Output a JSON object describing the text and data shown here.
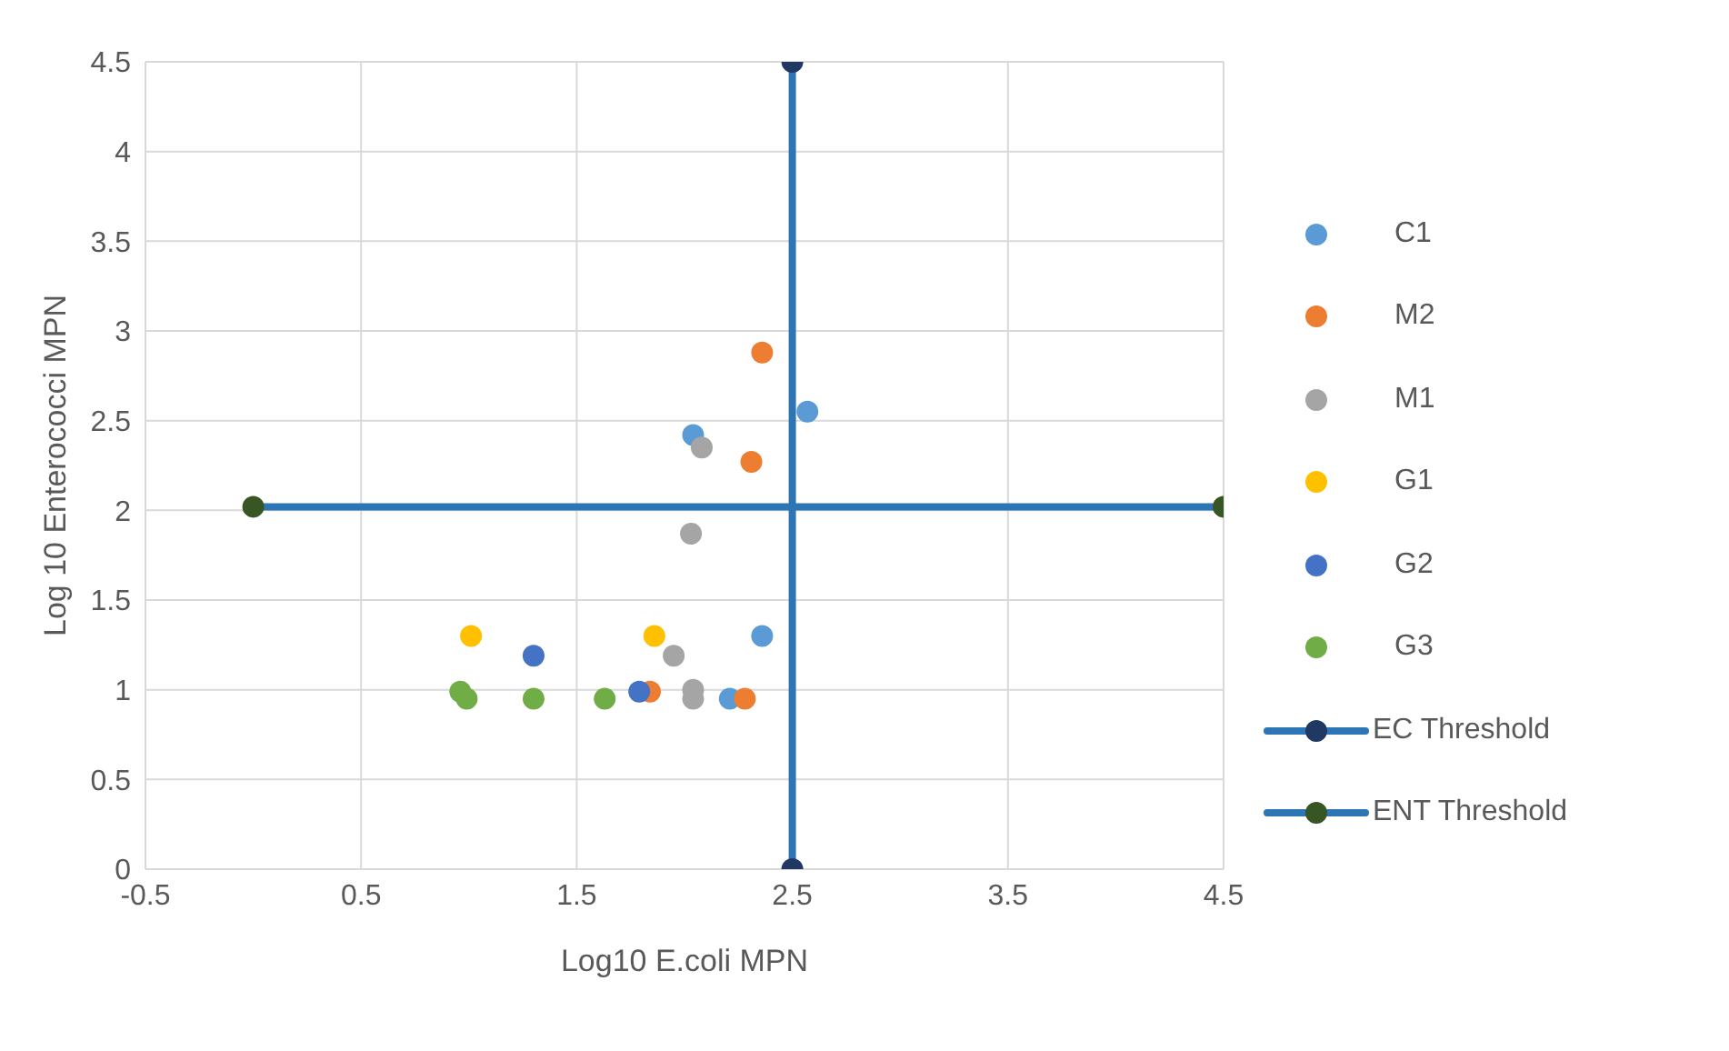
{
  "chart_data": {
    "type": "scatter",
    "xlabel": "Log10 E.coli MPN",
    "ylabel": "Log 10 Enterococci MPN",
    "xlim": [
      -0.5,
      4.5
    ],
    "xticks": [
      -0.5,
      0.5,
      1.5,
      2.5,
      3.5,
      4.5
    ],
    "ylim": [
      0,
      4.5
    ],
    "yticks": [
      0,
      0.5,
      1,
      1.5,
      2,
      2.5,
      3,
      3.5,
      4,
      4.5
    ],
    "grid": true,
    "legend": "right",
    "marker": "circle",
    "series": [
      {
        "name": "C1",
        "color": "#5b9bd5",
        "x": [
          2.04,
          2.57,
          2.36,
          2.21
        ],
        "values": [
          2.42,
          2.55,
          1.3,
          0.95
        ]
      },
      {
        "name": "M2",
        "color": "#ed7d31",
        "x": [
          2.36,
          2.31,
          1.84,
          2.28
        ],
        "values": [
          2.88,
          2.27,
          0.99,
          0.95
        ]
      },
      {
        "name": "M1",
        "color": "#a5a5a5",
        "x": [
          2.08,
          2.03,
          1.95,
          2.04,
          2.04
        ],
        "values": [
          2.35,
          1.87,
          1.19,
          1.0,
          0.95
        ]
      },
      {
        "name": "G1",
        "color": "#ffc000",
        "x": [
          1.01,
          1.86
        ],
        "values": [
          1.3,
          1.3
        ]
      },
      {
        "name": "G2",
        "color": "#4472c4",
        "x": [
          1.3,
          1.79
        ],
        "values": [
          1.19,
          0.99
        ]
      },
      {
        "name": "G3",
        "color": "#70ad47",
        "x": [
          0.96,
          0.99,
          1.3,
          1.63
        ],
        "values": [
          0.99,
          0.95,
          0.95,
          0.95
        ]
      },
      {
        "name": "EC Threshold",
        "type": "line",
        "color": "#2e75b6",
        "colors": [
          "#203864",
          "#203864"
        ],
        "x": [
          2.5,
          2.5
        ],
        "values": [
          0,
          4.5
        ]
      },
      {
        "name": "ENT Threshold",
        "type": "line",
        "color": "#2e75b6",
        "colors": [
          "#375623",
          "#375623"
        ],
        "x": [
          0,
          4.5
        ],
        "values": [
          2.02,
          2.02
        ]
      }
    ]
  }
}
